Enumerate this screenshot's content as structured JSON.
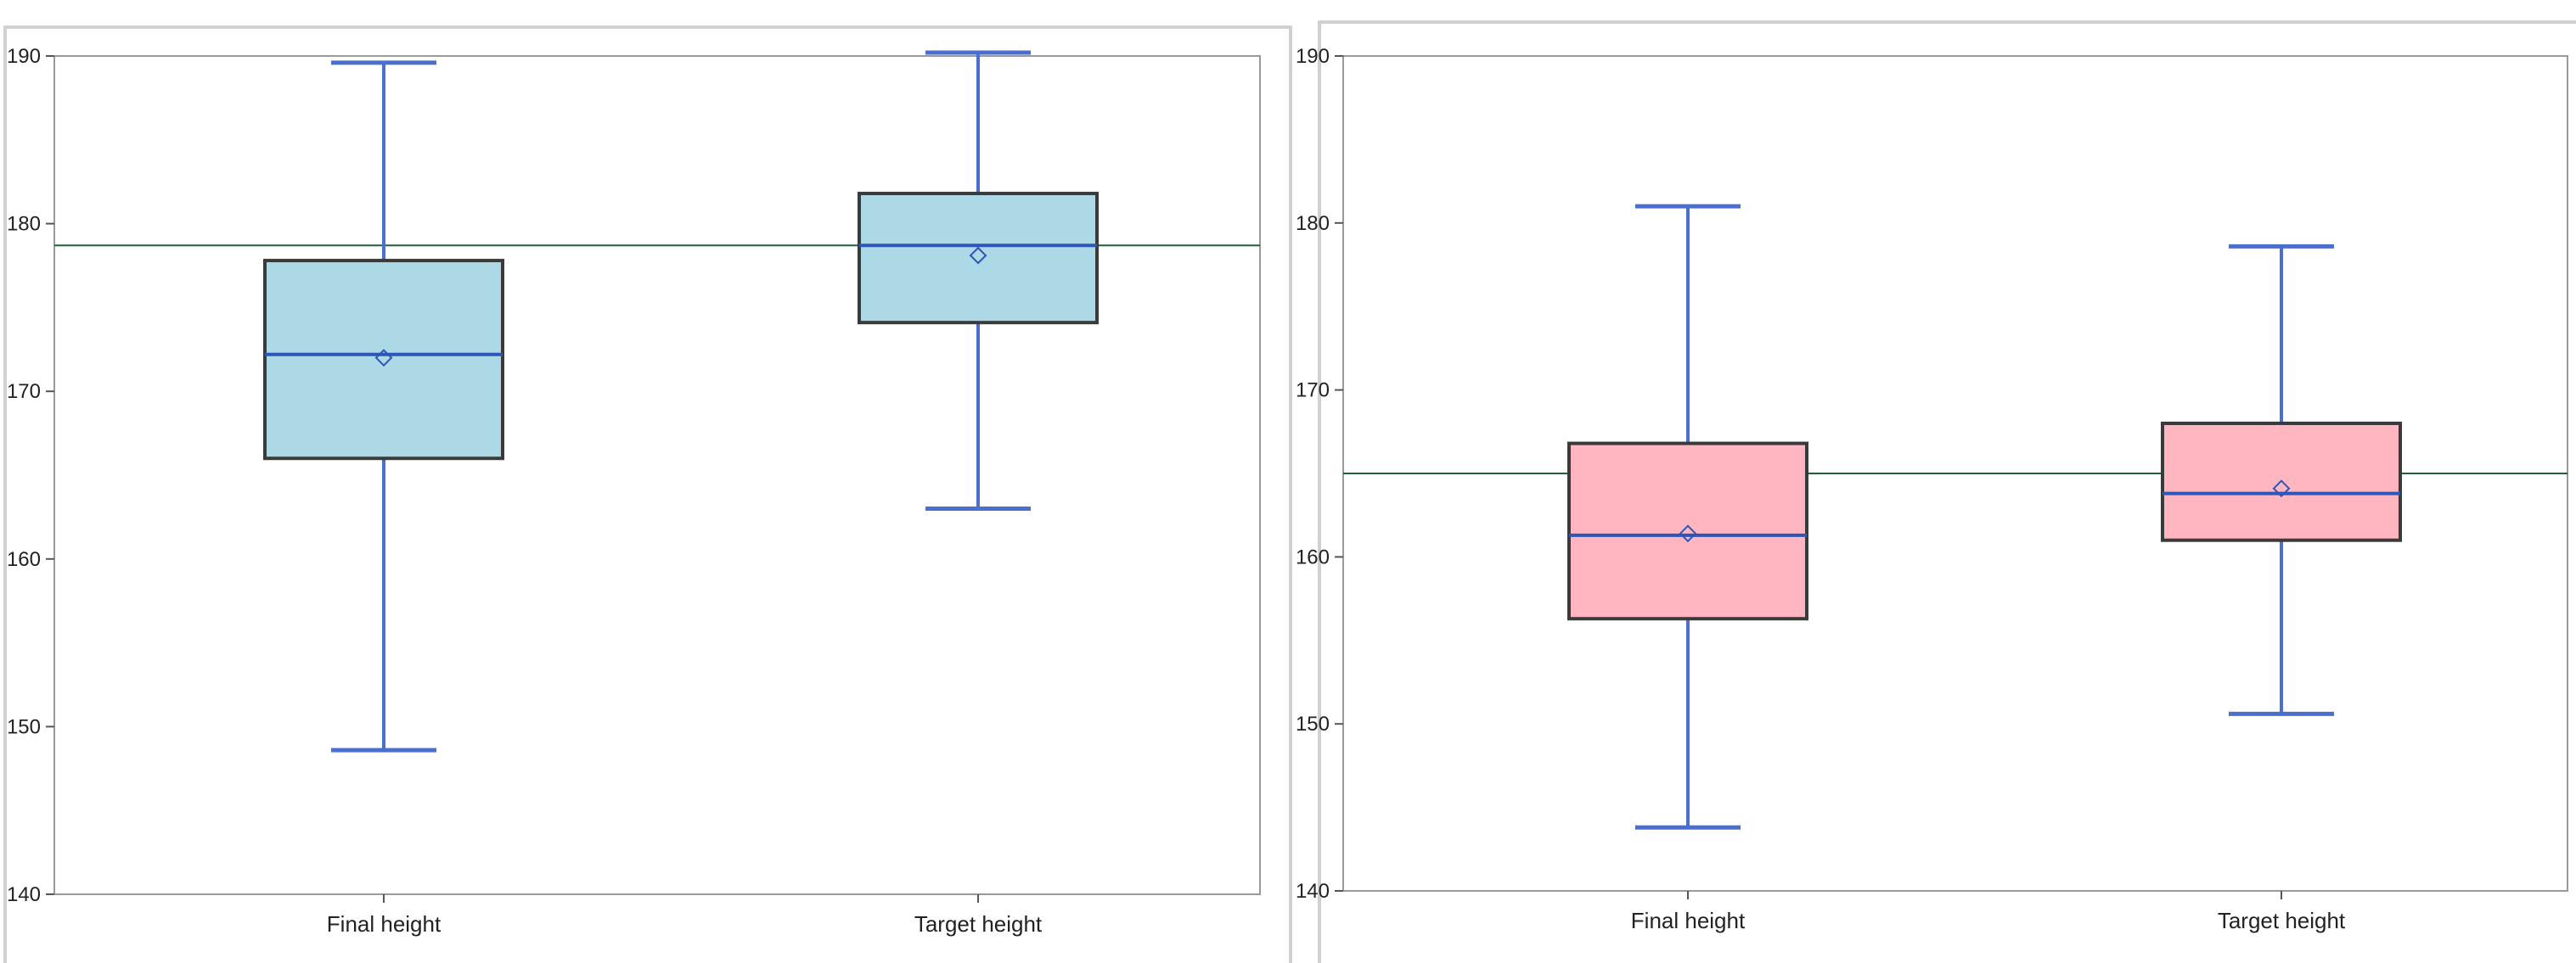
{
  "chart_data": [
    {
      "type": "box",
      "title": "",
      "xlabel": "",
      "ylabel": "",
      "ylim": [
        140,
        190
      ],
      "yticks": [
        140,
        150,
        160,
        170,
        180,
        190
      ],
      "tick_labels": [
        "140",
        "150",
        "160",
        "170",
        "180",
        "190"
      ],
      "categories": [
        "Final height",
        "Target height"
      ],
      "boxes": [
        {
          "category": "Final height",
          "whisker_low": 148.6,
          "q1": 166.0,
          "median": 172.2,
          "q3": 177.8,
          "whisker_high": 189.6,
          "mean": 172.0
        },
        {
          "category": "Target height",
          "whisker_low": 163.0,
          "q1": 174.1,
          "median": 178.7,
          "q3": 181.8,
          "whisker_high": 190.2,
          "mean": 178.1
        }
      ],
      "reference_line": 178.7,
      "box_fill": "#add8e6",
      "box_edge": "#3a3a3a",
      "whisker_color": "#4a6fcf",
      "median_color": "#2d56b8",
      "reference_color": "#1f5f3a",
      "grid": false
    },
    {
      "type": "box",
      "title": "",
      "xlabel": "",
      "ylabel": "",
      "ylim": [
        140,
        190
      ],
      "yticks": [
        140,
        150,
        160,
        170,
        180,
        190
      ],
      "tick_labels": [
        "140",
        "150",
        "160",
        "170",
        "180",
        "190"
      ],
      "categories": [
        "Final height",
        "Target height"
      ],
      "boxes": [
        {
          "category": "Final height",
          "whisker_low": 143.8,
          "q1": 156.3,
          "median": 161.3,
          "q3": 166.8,
          "whisker_high": 181.0,
          "mean": 161.4
        },
        {
          "category": "Target height",
          "whisker_low": 150.6,
          "q1": 161.0,
          "median": 163.8,
          "q3": 168.0,
          "whisker_high": 178.6,
          "mean": 164.1
        }
      ],
      "reference_line": 165.0,
      "box_fill": "#ffb6c1",
      "box_edge": "#3a3a3a",
      "whisker_color": "#4a6fcf",
      "median_color": "#2d56b8",
      "reference_color": "#1f5f3a",
      "grid": false
    }
  ]
}
